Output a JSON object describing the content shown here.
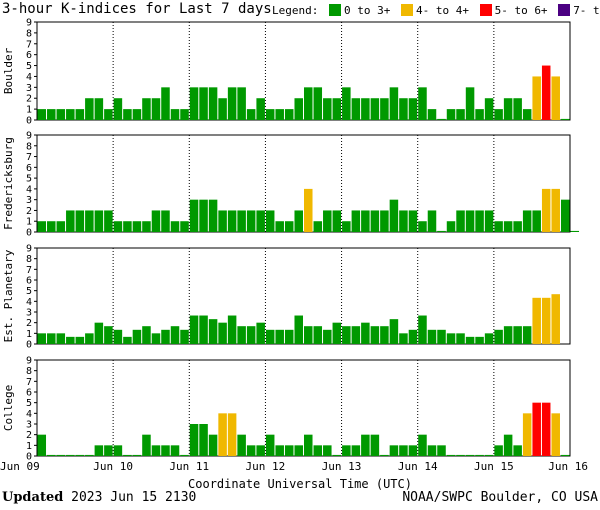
{
  "title": "3-hour K-indices for Last 7 days",
  "legend": {
    "label": "Legend:",
    "items": [
      {
        "label": "0 to 3+",
        "color": "#009900"
      },
      {
        "label": "4- to 4+",
        "color": "#f0b800"
      },
      {
        "label": "5- to 6+",
        "color": "#ff0000"
      },
      {
        "label": "7- to 9",
        "color": "#4b0082"
      }
    ]
  },
  "footer": {
    "updated_label": "Updated",
    "updated_value": "2023 Jun 15 2130",
    "source": "NOAA/SWPC Boulder, CO USA"
  },
  "chart_data": [
    {
      "type": "bar",
      "ylabel": "Boulder",
      "ylim": [
        0,
        9
      ],
      "xlabel": "Coordinate Universal Time (UTC)",
      "x_ticks": [
        "Jun 09",
        "Jun 10",
        "Jun 11",
        "Jun 12",
        "Jun 13",
        "Jun 14",
        "Jun 15",
        "Jun 16"
      ],
      "values": [
        1,
        1,
        1,
        1,
        1,
        2,
        2,
        1,
        2,
        1,
        1,
        2,
        2,
        3,
        1,
        1,
        3,
        3,
        3,
        2,
        3,
        3,
        1,
        2,
        1,
        1,
        1,
        2,
        3,
        3,
        2,
        2,
        3,
        2,
        2,
        2,
        2,
        3,
        2,
        2,
        3,
        1,
        0.1,
        1,
        1,
        3,
        1,
        2,
        1,
        2,
        2,
        1,
        4,
        5,
        4,
        0.1
      ]
    },
    {
      "type": "bar",
      "ylabel": "Fredericksburg",
      "ylim": [
        0,
        9
      ],
      "x_ticks": [
        "Jun 09",
        "Jun 10",
        "Jun 11",
        "Jun 12",
        "Jun 13",
        "Jun 14",
        "Jun 15",
        "Jun 16"
      ],
      "values": [
        1,
        1,
        1,
        2,
        2,
        2,
        2,
        2,
        1,
        1,
        1,
        1,
        2,
        2,
        1,
        1,
        3,
        3,
        3,
        2,
        2,
        2,
        2,
        2,
        2,
        1,
        1,
        2,
        4,
        1,
        2,
        2,
        1,
        2,
        2,
        2,
        2,
        3,
        2,
        2,
        1,
        2,
        0.1,
        1,
        2,
        2,
        2,
        2,
        1,
        1,
        1,
        2,
        2,
        4,
        4,
        3,
        0.1
      ]
    },
    {
      "type": "bar",
      "ylabel": "Est. Planetary",
      "ylim": [
        0,
        9
      ],
      "x_ticks": [
        "Jun 09",
        "Jun 10",
        "Jun 11",
        "Jun 12",
        "Jun 13",
        "Jun 14",
        "Jun 15",
        "Jun 16"
      ],
      "values": [
        1,
        1,
        1,
        0.67,
        0.67,
        1,
        2,
        1.67,
        1.33,
        0.67,
        1.33,
        1.67,
        1,
        1.33,
        1.67,
        1.33,
        2.67,
        2.67,
        2.33,
        2,
        2.67,
        1.67,
        1.67,
        2,
        1.33,
        1.33,
        1.33,
        2.67,
        1.67,
        1.67,
        1.33,
        2,
        1.67,
        1.67,
        2,
        1.67,
        1.67,
        2.33,
        1,
        1.33,
        2.67,
        1.33,
        1.33,
        1,
        1,
        0.67,
        0.67,
        1,
        1.33,
        1.67,
        1.67,
        1.67,
        4.33,
        4.33,
        4.67
      ]
    },
    {
      "type": "bar",
      "ylabel": "College",
      "ylim": [
        0,
        9
      ],
      "x_ticks": [
        "Jun 09",
        "Jun 10",
        "Jun 11",
        "Jun 12",
        "Jun 13",
        "Jun 14",
        "Jun 15",
        "Jun 16"
      ],
      "values": [
        2,
        0.1,
        0.1,
        0.1,
        0.1,
        0.1,
        1,
        1,
        1,
        0.1,
        0.1,
        2,
        1,
        1,
        1,
        0.1,
        3,
        3,
        2,
        4,
        4,
        2,
        1,
        1,
        2,
        1,
        1,
        1,
        2,
        1,
        1,
        0.1,
        1,
        1,
        2,
        2,
        0.1,
        1,
        1,
        1,
        2,
        1,
        1,
        0.1,
        0.1,
        0.1,
        0.1,
        0.1,
        1,
        2,
        1,
        4,
        5,
        5,
        4,
        0.1
      ]
    }
  ]
}
